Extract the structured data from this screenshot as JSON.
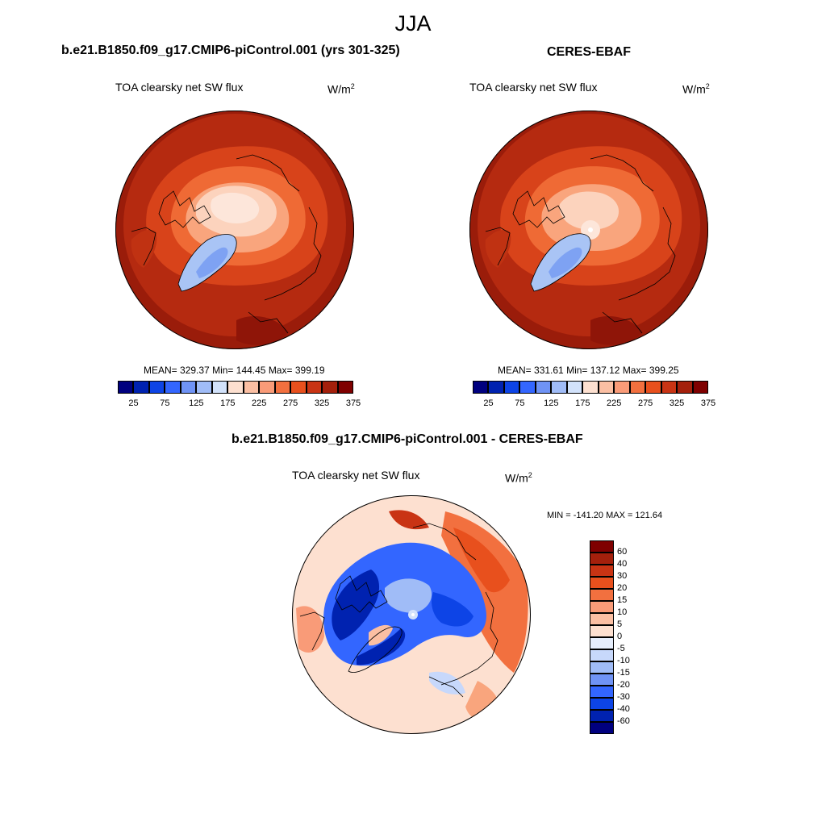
{
  "season": "JJA",
  "panels": {
    "model": {
      "title": "b.e21.B1850.f09_g17.CMIP6-piControl.001 (yrs 301-325)",
      "variable": "TOA clearsky net SW flux",
      "units": "W/m",
      "units_sup": "2",
      "mean_label": "MEAN=",
      "mean": "329.37",
      "min_label": "Min=",
      "min": "144.45",
      "max_label": "Max=",
      "max": "399.19"
    },
    "obs": {
      "title": "CERES-EBAF",
      "variable": "TOA clearsky net SW flux",
      "units": "W/m",
      "units_sup": "2",
      "mean_label": "MEAN=",
      "mean": "331.61",
      "min_label": "Min=",
      "min": "137.12",
      "max_label": "Max=",
      "max": "399.25"
    },
    "diff": {
      "title": "b.e21.B1850.f09_g17.CMIP6-piControl.001 - CERES-EBAF",
      "variable": "TOA clearsky net SW flux",
      "units": "W/m",
      "units_sup": "2",
      "minmax_text": "MIN = -141.20 MAX = 121.64"
    }
  },
  "chart_data": [
    {
      "type": "heatmap",
      "projection": "north-polar-stereographic",
      "title": "b.e21.B1850.f09_g17.CMIP6-piControl.001 (yrs 301-325)",
      "variable": "TOA clearsky net SW flux",
      "units": "W/m2",
      "mean": 329.37,
      "min": 144.45,
      "max": 399.19,
      "colorbar_ticks": [
        "25",
        "75",
        "125",
        "175",
        "225",
        "275",
        "325",
        "375"
      ],
      "colorbar_colors": [
        "#00007f",
        "#0022b0",
        "#0d44e6",
        "#3366ff",
        "#6f93f5",
        "#a0bcf7",
        "#d2e2fb",
        "#fde0d0",
        "#fbbfa3",
        "#f99b78",
        "#f2703f",
        "#e8501d",
        "#c93414",
        "#a4200c",
        "#7f0000"
      ]
    },
    {
      "type": "heatmap",
      "projection": "north-polar-stereographic",
      "title": "CERES-EBAF",
      "variable": "TOA clearsky net SW flux",
      "units": "W/m2",
      "mean": 331.61,
      "min": 137.12,
      "max": 399.25,
      "colorbar_ticks": [
        "25",
        "75",
        "125",
        "175",
        "225",
        "275",
        "325",
        "375"
      ],
      "colorbar_colors": [
        "#00007f",
        "#0022b0",
        "#0d44e6",
        "#3366ff",
        "#6f93f5",
        "#a0bcf7",
        "#d2e2fb",
        "#fde0d0",
        "#fbbfa3",
        "#f99b78",
        "#f2703f",
        "#e8501d",
        "#c93414",
        "#a4200c",
        "#7f0000"
      ]
    },
    {
      "type": "heatmap",
      "projection": "north-polar-stereographic",
      "title": "b.e21.B1850.f09_g17.CMIP6-piControl.001 - CERES-EBAF",
      "variable": "TOA clearsky net SW flux",
      "units": "W/m2",
      "min": -141.2,
      "max": 121.64,
      "colorbar_ticks": [
        "60",
        "40",
        "30",
        "20",
        "15",
        "10",
        "5",
        "0",
        "-5",
        "-10",
        "-15",
        "-20",
        "-30",
        "-40",
        "-60"
      ],
      "colorbar_colors": [
        "#7f0000",
        "#a4200c",
        "#c93414",
        "#e8501d",
        "#f2703f",
        "#f99b78",
        "#fbbfa3",
        "#fde0d0",
        "#e6eefc",
        "#c7d8fb",
        "#a0bcf7",
        "#6f93f5",
        "#3366ff",
        "#0d44e6",
        "#0022b0",
        "#00007f"
      ]
    }
  ]
}
